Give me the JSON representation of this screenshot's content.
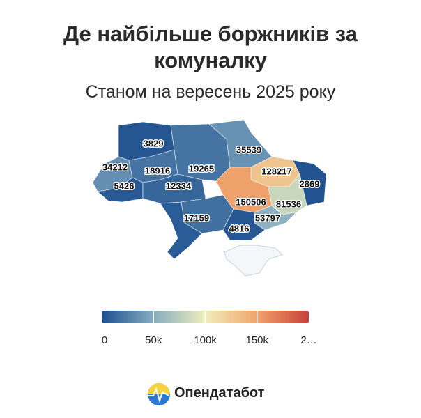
{
  "title": "Де найбільше боржників за комуналку",
  "subtitle": "Станом на вересень 2025 року",
  "map": {
    "type": "choropleth",
    "values": [
      3829,
      35539,
      34212,
      18916,
      19265,
      128217,
      5426,
      12334,
      2869,
      150506,
      81536,
      17159,
      53797,
      4816
    ]
  },
  "colorbar": {
    "lim": [
      0,
      200000
    ],
    "colors": [
      "#1d4f8e",
      "#86adc2",
      "#f1eebc",
      "#f0a36c",
      "#c8413b"
    ],
    "ticks": [
      0,
      {
        "value": 50000,
        "label": "50k"
      },
      {
        "value": 100000,
        "label": "100k"
      },
      {
        "value": 150000,
        "label": "150k"
      },
      {
        "value": 200000,
        "label": "2…"
      }
    ]
  },
  "brand": "Опендатабот"
}
